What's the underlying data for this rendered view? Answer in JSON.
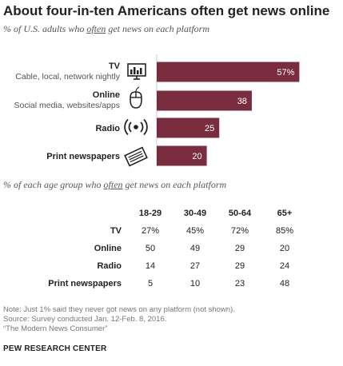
{
  "title": "About four-in-ten Americans often get news online",
  "subtitle": {
    "before": "% of U.S. adults who ",
    "underlined": "often",
    "after": " get news on each platform"
  },
  "colors": {
    "bar": "#7b2d40",
    "bar_text": "#ffffff"
  },
  "chart_data": [
    {
      "type": "bar",
      "orientation": "horizontal",
      "categories": [
        "TV",
        "Online",
        "Radio",
        "Print newspapers"
      ],
      "sublabels": [
        "Cable, local, network nightly",
        "Social media, websites/apps",
        "",
        ""
      ],
      "icons": [
        "tv-icon",
        "mouse-icon",
        "radio-icon",
        "newspaper-icon"
      ],
      "values": [
        57,
        38,
        25,
        20
      ],
      "value_labels": [
        "57%",
        "38",
        "25",
        "20"
      ],
      "xlim": [
        0,
        100
      ]
    },
    {
      "type": "table",
      "columns": [
        "18-29",
        "30-49",
        "50-64",
        "65+"
      ],
      "rows": [
        {
          "label": "TV",
          "values": [
            "27%",
            "45%",
            "72%",
            "85%"
          ]
        },
        {
          "label": "Online",
          "values": [
            "50",
            "49",
            "29",
            "20"
          ]
        },
        {
          "label": "Radio",
          "values": [
            "14",
            "27",
            "29",
            "24"
          ]
        },
        {
          "label": "Print newspapers",
          "values": [
            "5",
            "10",
            "23",
            "48"
          ]
        }
      ]
    }
  ],
  "subtitle2": {
    "before": "% of each age group who ",
    "underlined": "often",
    "after": " get news on each platform"
  },
  "notes": [
    "Note: Just 1% said they never got news on any platform (not shown).",
    "Source: Survey conducted Jan. 12-Feb. 8, 2016.",
    "“The Modern News Consumer”"
  ],
  "source_org": "PEW RESEARCH CENTER"
}
